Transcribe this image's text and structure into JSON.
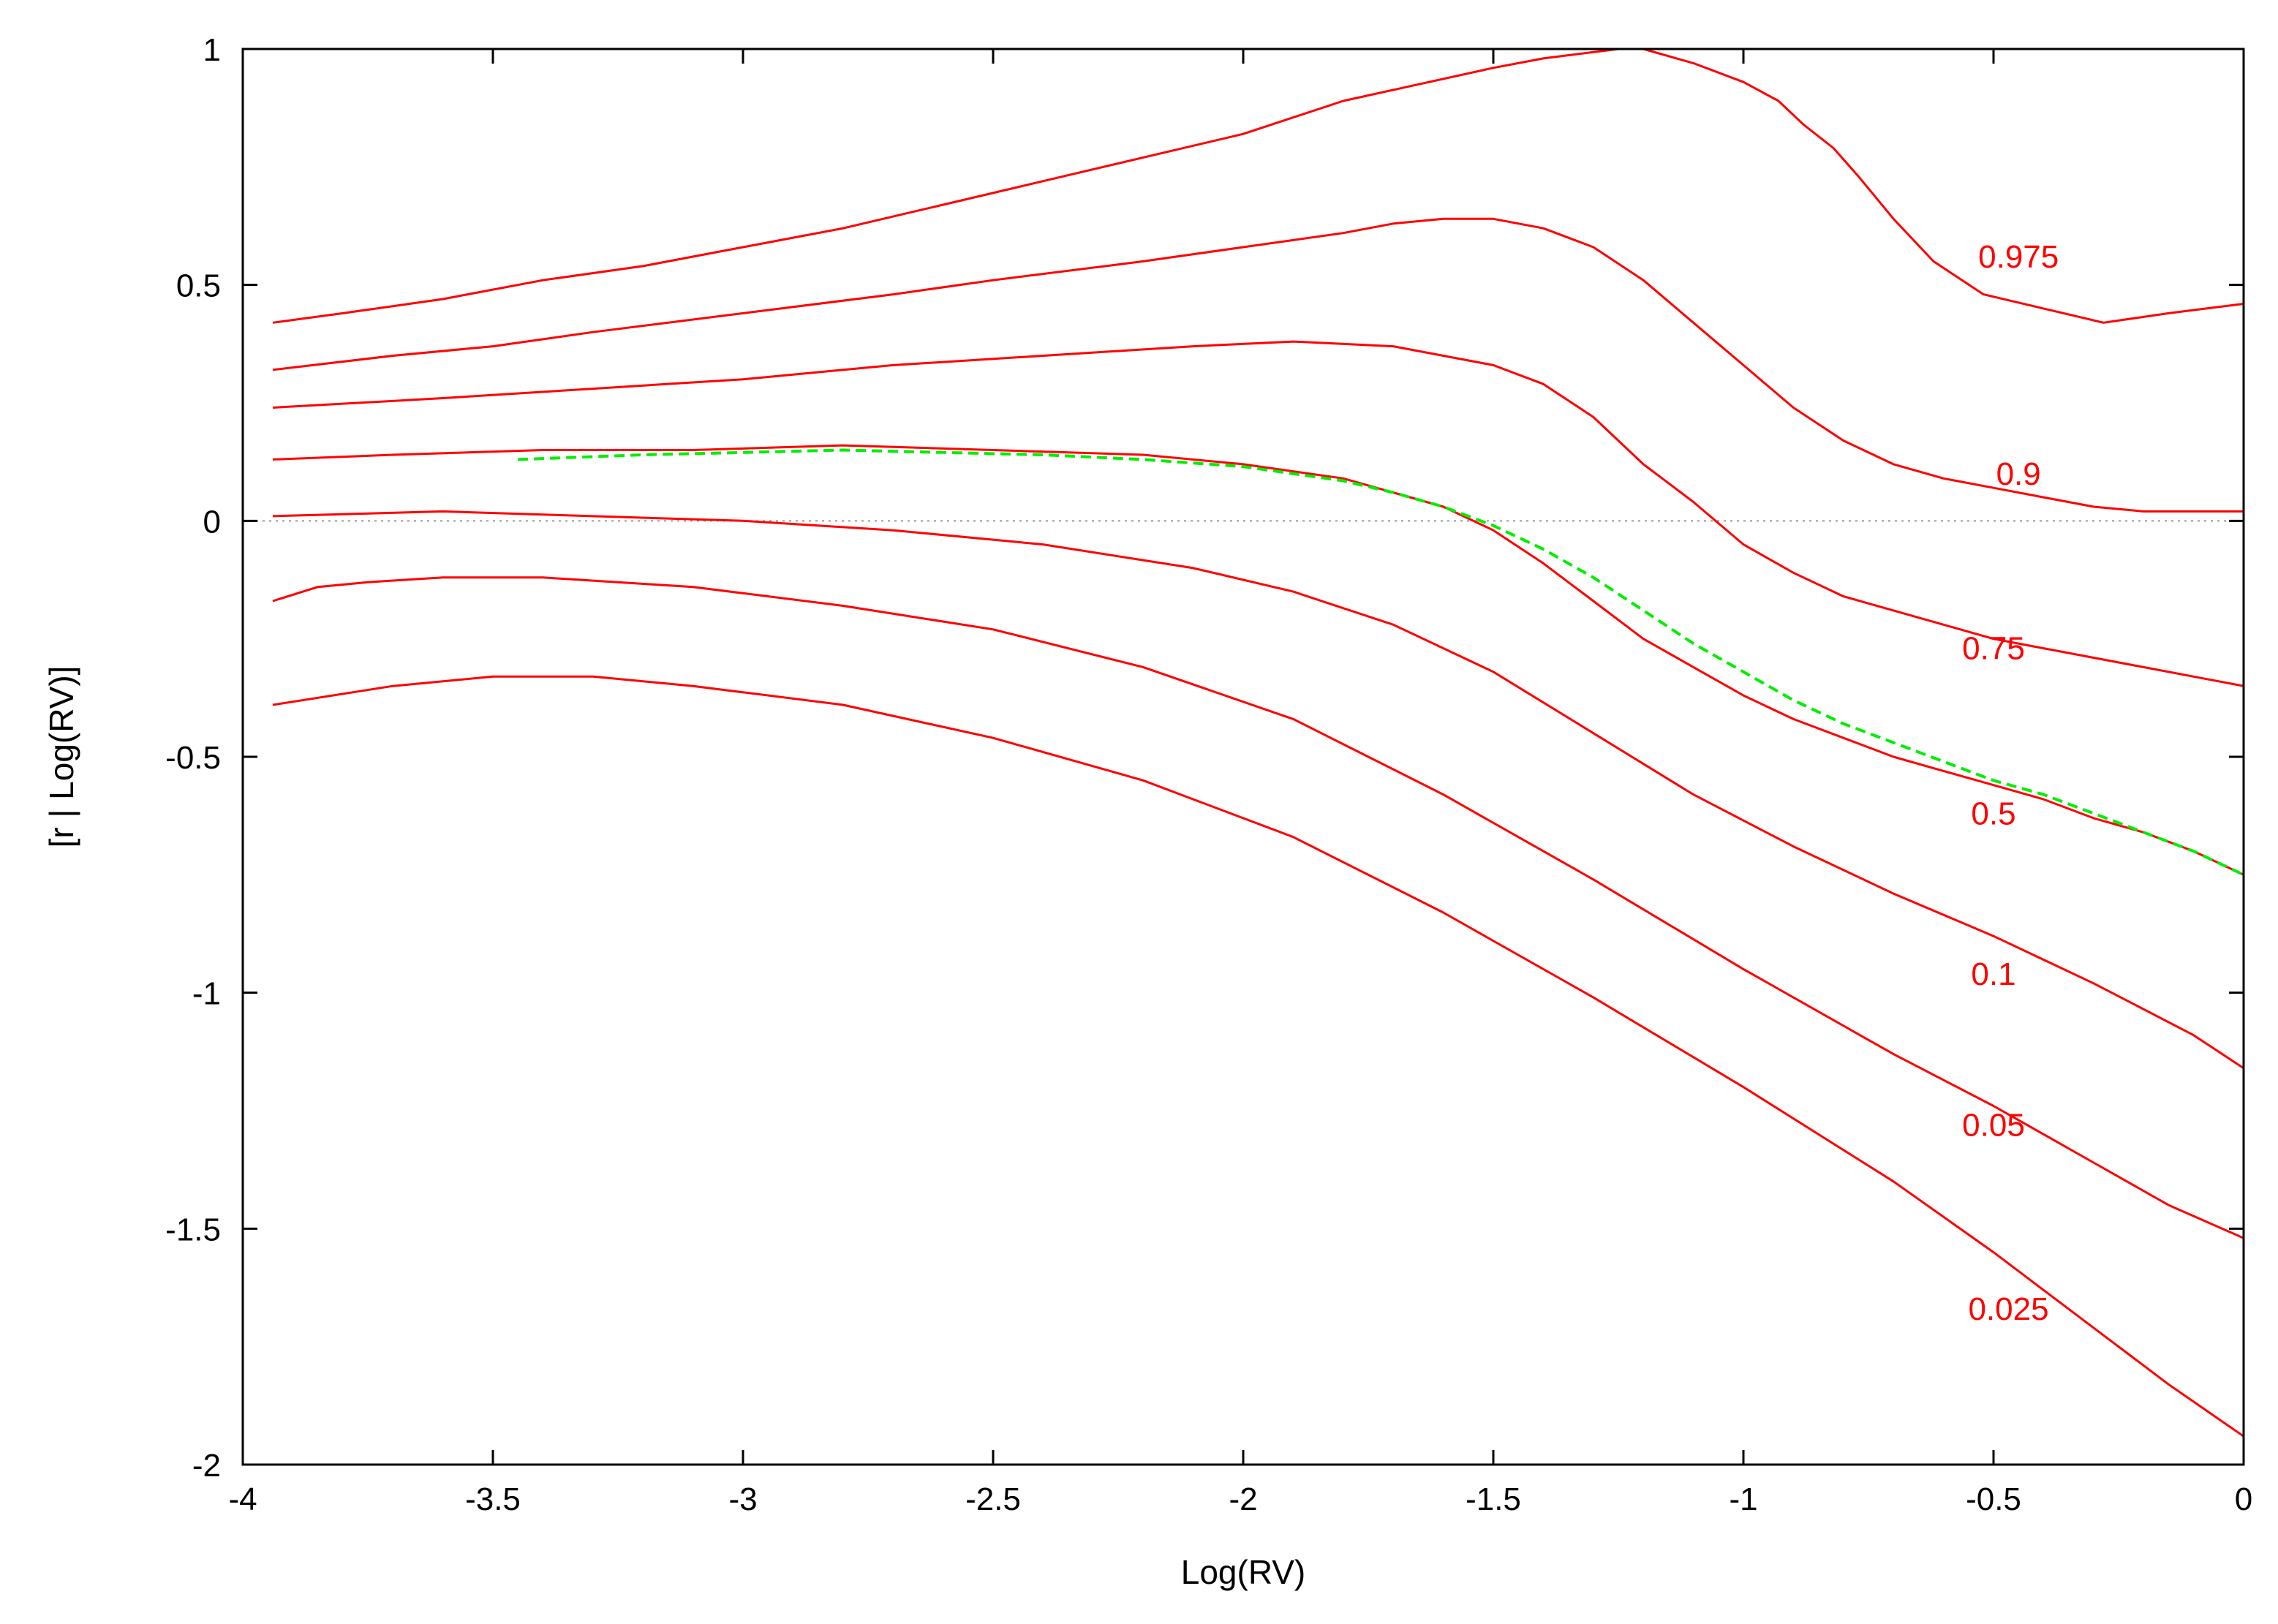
{
  "chart_data": {
    "type": "line",
    "title": "",
    "xlabel": "Log(RV)",
    "ylabel": "[r | Log(RV)]",
    "xlim": [
      -4,
      0
    ],
    "ylim": [
      -2,
      1
    ],
    "xticks": [
      -4,
      -3.5,
      -3,
      -2.5,
      -2,
      -1.5,
      -1,
      -0.5,
      0
    ],
    "yticks": [
      -2,
      -1.5,
      -1,
      -0.5,
      0,
      0.5,
      1
    ],
    "xtick_labels": [
      "-4",
      "-3.5",
      "-3",
      "-2.5",
      "-2",
      "-1.5",
      "-1",
      "-0.5",
      "0"
    ],
    "ytick_labels": [
      "-2",
      "-1.5",
      "-1",
      "-0.5",
      "0",
      "0.5",
      "1"
    ],
    "grid": false,
    "zero_line": true,
    "series_color": "#ff0000",
    "reference_color": "#00ee00",
    "zero_line_color": "#999999",
    "series": [
      {
        "name": "0.975",
        "label_pos": [
          -0.45,
          0.56
        ],
        "x": [
          -3.94,
          -3.8,
          -3.6,
          -3.4,
          -3.2,
          -3.0,
          -2.9,
          -2.8,
          -2.6,
          -2.4,
          -2.2,
          -2.0,
          -1.8,
          -1.5,
          -1.4,
          -1.25,
          -1.2,
          -1.1,
          -1.0,
          -0.93,
          -0.88,
          -0.82,
          -0.77,
          -0.7,
          -0.62,
          -0.52,
          -0.4,
          -0.28,
          -0.15,
          0.0
        ],
        "y": [
          0.42,
          0.44,
          0.47,
          0.51,
          0.54,
          0.58,
          0.6,
          0.62,
          0.67,
          0.72,
          0.77,
          0.82,
          0.89,
          0.96,
          0.98,
          1.0,
          1.0,
          0.97,
          0.93,
          0.89,
          0.84,
          0.79,
          0.73,
          0.64,
          0.55,
          0.48,
          0.45,
          0.42,
          0.44,
          0.46
        ]
      },
      {
        "name": "0.9",
        "label_pos": [
          -0.45,
          0.1
        ],
        "x": [
          -3.94,
          -3.7,
          -3.5,
          -3.3,
          -3.0,
          -2.7,
          -2.5,
          -2.2,
          -2.0,
          -1.8,
          -1.7,
          -1.6,
          -1.5,
          -1.4,
          -1.3,
          -1.2,
          -1.1,
          -1.0,
          -0.9,
          -0.8,
          -0.7,
          -0.6,
          -0.5,
          -0.4,
          -0.3,
          -0.2,
          -0.1,
          0.0
        ],
        "y": [
          0.32,
          0.35,
          0.37,
          0.4,
          0.44,
          0.48,
          0.51,
          0.55,
          0.58,
          0.61,
          0.63,
          0.64,
          0.64,
          0.62,
          0.58,
          0.51,
          0.42,
          0.33,
          0.24,
          0.17,
          0.12,
          0.09,
          0.07,
          0.05,
          0.03,
          0.02,
          0.02,
          0.02
        ]
      },
      {
        "name": "0.75",
        "label_pos": [
          -0.5,
          -0.27
        ],
        "x": [
          -3.94,
          -3.6,
          -3.3,
          -3.0,
          -2.7,
          -2.4,
          -2.1,
          -1.9,
          -1.7,
          -1.5,
          -1.4,
          -1.3,
          -1.2,
          -1.1,
          -1.0,
          -0.9,
          -0.8,
          -0.7,
          -0.6,
          -0.5,
          -0.4,
          -0.3,
          -0.2,
          -0.1,
          0.0
        ],
        "y": [
          0.24,
          0.26,
          0.28,
          0.3,
          0.33,
          0.35,
          0.37,
          0.38,
          0.37,
          0.33,
          0.29,
          0.22,
          0.12,
          0.04,
          -0.05,
          -0.11,
          -0.16,
          -0.19,
          -0.22,
          -0.25,
          -0.27,
          -0.29,
          -0.31,
          -0.33,
          -0.35
        ]
      },
      {
        "name": "0.5",
        "label_pos": [
          -0.5,
          -0.62
        ],
        "x": [
          -3.94,
          -3.7,
          -3.4,
          -3.1,
          -2.8,
          -2.5,
          -2.2,
          -2.0,
          -1.8,
          -1.7,
          -1.6,
          -1.5,
          -1.4,
          -1.3,
          -1.2,
          -1.1,
          -1.0,
          -0.9,
          -0.8,
          -0.7,
          -0.6,
          -0.5,
          -0.4,
          -0.3,
          -0.2,
          -0.1,
          0.0
        ],
        "y": [
          0.13,
          0.14,
          0.15,
          0.15,
          0.16,
          0.15,
          0.14,
          0.12,
          0.09,
          0.06,
          0.03,
          -0.02,
          -0.09,
          -0.17,
          -0.25,
          -0.31,
          -0.37,
          -0.42,
          -0.46,
          -0.5,
          -0.53,
          -0.56,
          -0.59,
          -0.63,
          -0.66,
          -0.7,
          -0.75
        ]
      },
      {
        "name": "0.1",
        "label_pos": [
          -0.5,
          -0.96
        ],
        "x": [
          -3.94,
          -3.6,
          -3.3,
          -3.0,
          -2.7,
          -2.4,
          -2.1,
          -1.9,
          -1.7,
          -1.5,
          -1.3,
          -1.1,
          -0.9,
          -0.7,
          -0.5,
          -0.3,
          -0.1,
          0.0
        ],
        "y": [
          0.01,
          0.02,
          0.01,
          0.0,
          -0.02,
          -0.05,
          -0.1,
          -0.15,
          -0.22,
          -0.32,
          -0.45,
          -0.58,
          -0.69,
          -0.79,
          -0.88,
          -0.98,
          -1.09,
          -1.16
        ]
      },
      {
        "name": "0.05",
        "label_pos": [
          -0.5,
          -1.28
        ],
        "x": [
          -3.94,
          -3.85,
          -3.75,
          -3.6,
          -3.4,
          -3.1,
          -2.8,
          -2.5,
          -2.2,
          -1.9,
          -1.6,
          -1.3,
          -1.0,
          -0.7,
          -0.5,
          -0.3,
          -0.15,
          0.0
        ],
        "y": [
          -0.17,
          -0.14,
          -0.13,
          -0.12,
          -0.12,
          -0.14,
          -0.18,
          -0.23,
          -0.31,
          -0.42,
          -0.58,
          -0.76,
          -0.95,
          -1.13,
          -1.24,
          -1.36,
          -1.45,
          -1.52
        ]
      },
      {
        "name": "0.025",
        "label_pos": [
          -0.47,
          -1.67
        ],
        "x": [
          -3.94,
          -3.7,
          -3.5,
          -3.3,
          -3.1,
          -2.8,
          -2.5,
          -2.2,
          -1.9,
          -1.6,
          -1.3,
          -1.0,
          -0.7,
          -0.5,
          -0.3,
          -0.15,
          0.0
        ],
        "y": [
          -0.39,
          -0.35,
          -0.33,
          -0.33,
          -0.35,
          -0.39,
          -0.46,
          -0.55,
          -0.67,
          -0.83,
          -1.01,
          -1.2,
          -1.4,
          -1.55,
          -1.71,
          -1.83,
          -1.94
        ]
      },
      {
        "name": "",
        "style": "dashed",
        "color": "reference",
        "x": [
          -3.45,
          -3.2,
          -3.0,
          -2.8,
          -2.6,
          -2.4,
          -2.2,
          -2.0,
          -1.8,
          -1.7,
          -1.6,
          -1.5,
          -1.4,
          -1.3,
          -1.2,
          -1.1,
          -1.0,
          -0.9,
          -0.8,
          -0.7,
          -0.6,
          -0.5,
          -0.4,
          -0.3,
          -0.2,
          -0.1,
          0.0
        ],
        "y": [
          0.13,
          0.14,
          0.145,
          0.15,
          0.145,
          0.14,
          0.13,
          0.115,
          0.085,
          0.06,
          0.03,
          -0.01,
          -0.06,
          -0.12,
          -0.19,
          -0.26,
          -0.32,
          -0.38,
          -0.43,
          -0.47,
          -0.51,
          -0.55,
          -0.58,
          -0.62,
          -0.66,
          -0.7,
          -0.75
        ]
      }
    ]
  }
}
